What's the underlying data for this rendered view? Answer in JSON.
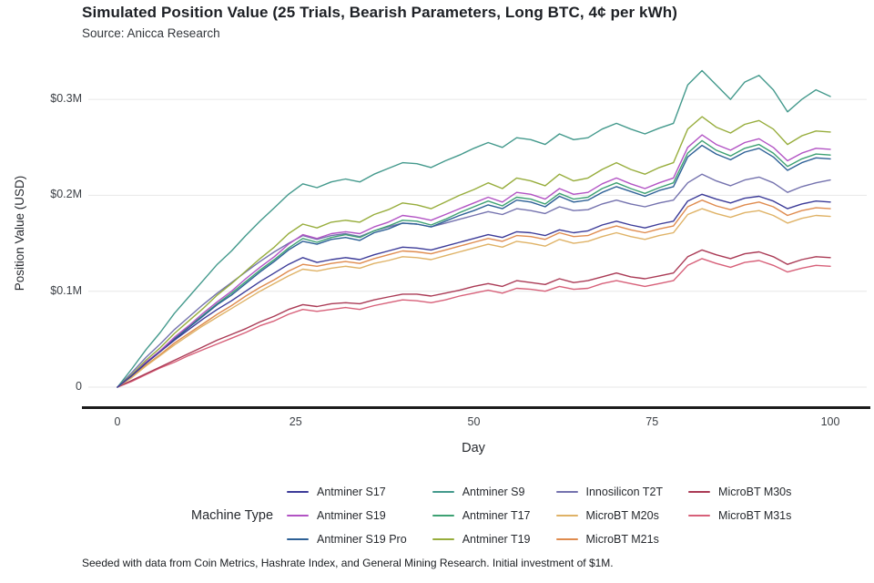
{
  "title": "Simulated Position Value (25 Trials, Bearish Parameters, Long BTC, 4¢ per kWh)",
  "subtitle": "Source: Anicca Research",
  "footnote": "Seeded with data from Coin Metrics, Hashrate Index, and General Mining Research. Initial investment of $1M.",
  "axes": {
    "y_label": "Position Value (USD)",
    "x_label": "Day",
    "y_ticks": [
      "$0.3M",
      "$0.2M",
      "$0.1M",
      "0"
    ],
    "x_ticks": [
      "0",
      "25",
      "50",
      "75",
      "100"
    ]
  },
  "legend": {
    "title": "Machine Type"
  },
  "colors": {
    "grid": "#e7e7e7",
    "axis": "#1b1b1b"
  },
  "chart_data": {
    "type": "line",
    "title": "Simulated Position Value (25 Trials, Bearish Parameters, Long BTC, 4¢ per kWh)",
    "xlabel": "Day",
    "ylabel": "Position Value (USD)",
    "x_range": [
      0,
      100
    ],
    "y_range_usd_m": [
      0,
      0.35
    ],
    "grid": true,
    "legend_position": "bottom",
    "x_step": 2,
    "x_tick_values": [
      0,
      25,
      50,
      75,
      100
    ],
    "y_tick_values_usd_m": [
      0.3,
      0.2,
      0.1,
      0
    ],
    "units": "million USD",
    "series": [
      {
        "name": "Antminer S17",
        "color": "#3c3b98",
        "values_usd_m": [
          0,
          0.012,
          0.025,
          0.037,
          0.049,
          0.06,
          0.071,
          0.081,
          0.09,
          0.1,
          0.11,
          0.119,
          0.128,
          0.135,
          0.13,
          0.133,
          0.135,
          0.133,
          0.138,
          0.142,
          0.146,
          0.145,
          0.143,
          0.147,
          0.151,
          0.155,
          0.159,
          0.156,
          0.162,
          0.161,
          0.158,
          0.164,
          0.161,
          0.163,
          0.169,
          0.173,
          0.169,
          0.166,
          0.17,
          0.173,
          0.194,
          0.201,
          0.196,
          0.192,
          0.197,
          0.199,
          0.194,
          0.186,
          0.191,
          0.194,
          0.193
        ]
      },
      {
        "name": "Antminer S19",
        "color": "#b253c4",
        "values_usd_m": [
          0,
          0.012,
          0.026,
          0.038,
          0.052,
          0.064,
          0.077,
          0.089,
          0.1,
          0.113,
          0.125,
          0.136,
          0.149,
          0.159,
          0.155,
          0.16,
          0.162,
          0.16,
          0.167,
          0.172,
          0.179,
          0.177,
          0.174,
          0.18,
          0.186,
          0.192,
          0.198,
          0.193,
          0.203,
          0.201,
          0.196,
          0.207,
          0.201,
          0.203,
          0.212,
          0.218,
          0.212,
          0.207,
          0.213,
          0.218,
          0.25,
          0.263,
          0.253,
          0.247,
          0.255,
          0.259,
          0.25,
          0.236,
          0.244,
          0.249,
          0.248
        ]
      },
      {
        "name": "Antminer S19 Pro",
        "color": "#2d6096",
        "values_usd_m": [
          0,
          0.012,
          0.025,
          0.037,
          0.05,
          0.062,
          0.074,
          0.086,
          0.096,
          0.108,
          0.12,
          0.131,
          0.143,
          0.152,
          0.149,
          0.154,
          0.156,
          0.153,
          0.161,
          0.165,
          0.171,
          0.17,
          0.167,
          0.173,
          0.179,
          0.184,
          0.19,
          0.186,
          0.195,
          0.193,
          0.188,
          0.199,
          0.193,
          0.195,
          0.203,
          0.209,
          0.204,
          0.199,
          0.205,
          0.209,
          0.24,
          0.252,
          0.243,
          0.237,
          0.245,
          0.249,
          0.24,
          0.226,
          0.234,
          0.239,
          0.238
        ]
      },
      {
        "name": "Antminer S9",
        "color": "#43998c",
        "values_usd_m": [
          0,
          0.019,
          0.039,
          0.057,
          0.077,
          0.094,
          0.111,
          0.128,
          0.142,
          0.158,
          0.173,
          0.187,
          0.201,
          0.212,
          0.208,
          0.214,
          0.217,
          0.214,
          0.222,
          0.228,
          0.234,
          0.233,
          0.229,
          0.236,
          0.242,
          0.249,
          0.255,
          0.25,
          0.26,
          0.258,
          0.253,
          0.264,
          0.258,
          0.26,
          0.269,
          0.275,
          0.269,
          0.264,
          0.27,
          0.275,
          0.315,
          0.33,
          0.315,
          0.3,
          0.318,
          0.325,
          0.31,
          0.287,
          0.3,
          0.31,
          0.303
        ]
      },
      {
        "name": "Antminer T17",
        "color": "#3da173",
        "values_usd_m": [
          0,
          0.012,
          0.025,
          0.038,
          0.051,
          0.063,
          0.075,
          0.087,
          0.098,
          0.11,
          0.122,
          0.133,
          0.145,
          0.155,
          0.151,
          0.156,
          0.159,
          0.156,
          0.163,
          0.168,
          0.174,
          0.173,
          0.169,
          0.175,
          0.182,
          0.188,
          0.194,
          0.189,
          0.198,
          0.196,
          0.191,
          0.202,
          0.196,
          0.198,
          0.207,
          0.213,
          0.207,
          0.202,
          0.208,
          0.213,
          0.244,
          0.257,
          0.247,
          0.241,
          0.249,
          0.253,
          0.244,
          0.23,
          0.238,
          0.243,
          0.242
        ]
      },
      {
        "name": "Antminer T19",
        "color": "#97ad3c",
        "values_usd_m": [
          0,
          0.013,
          0.028,
          0.041,
          0.056,
          0.069,
          0.082,
          0.096,
          0.108,
          0.121,
          0.134,
          0.146,
          0.16,
          0.17,
          0.166,
          0.172,
          0.174,
          0.172,
          0.18,
          0.185,
          0.192,
          0.19,
          0.186,
          0.193,
          0.2,
          0.206,
          0.213,
          0.207,
          0.218,
          0.215,
          0.21,
          0.222,
          0.215,
          0.218,
          0.227,
          0.234,
          0.227,
          0.222,
          0.229,
          0.234,
          0.269,
          0.282,
          0.271,
          0.265,
          0.274,
          0.278,
          0.269,
          0.253,
          0.262,
          0.267,
          0.266
        ]
      },
      {
        "name": "Innosilicon T2T",
        "color": "#7472ae",
        "values_usd_m": [
          0,
          0.015,
          0.031,
          0.045,
          0.06,
          0.073,
          0.086,
          0.098,
          0.109,
          0.12,
          0.131,
          0.141,
          0.15,
          0.158,
          0.154,
          0.158,
          0.16,
          0.157,
          0.163,
          0.167,
          0.171,
          0.17,
          0.167,
          0.171,
          0.175,
          0.179,
          0.183,
          0.18,
          0.186,
          0.184,
          0.181,
          0.188,
          0.184,
          0.185,
          0.191,
          0.195,
          0.191,
          0.188,
          0.192,
          0.195,
          0.213,
          0.222,
          0.215,
          0.21,
          0.216,
          0.219,
          0.213,
          0.203,
          0.209,
          0.213,
          0.216
        ]
      },
      {
        "name": "MicroBT M20s",
        "color": "#dfb266",
        "values_usd_m": [
          0,
          0.01,
          0.022,
          0.033,
          0.044,
          0.054,
          0.064,
          0.073,
          0.082,
          0.091,
          0.1,
          0.108,
          0.116,
          0.123,
          0.121,
          0.124,
          0.126,
          0.124,
          0.129,
          0.132,
          0.136,
          0.135,
          0.133,
          0.137,
          0.141,
          0.145,
          0.149,
          0.146,
          0.152,
          0.15,
          0.147,
          0.154,
          0.15,
          0.152,
          0.157,
          0.161,
          0.157,
          0.154,
          0.158,
          0.161,
          0.18,
          0.186,
          0.181,
          0.177,
          0.182,
          0.184,
          0.179,
          0.171,
          0.176,
          0.179,
          0.178
        ]
      },
      {
        "name": "MicroBT M21s",
        "color": "#df8b4e",
        "values_usd_m": [
          0,
          0.011,
          0.023,
          0.034,
          0.046,
          0.056,
          0.066,
          0.076,
          0.085,
          0.095,
          0.104,
          0.112,
          0.121,
          0.128,
          0.126,
          0.129,
          0.131,
          0.129,
          0.134,
          0.138,
          0.142,
          0.141,
          0.139,
          0.143,
          0.147,
          0.151,
          0.155,
          0.152,
          0.158,
          0.157,
          0.154,
          0.161,
          0.157,
          0.158,
          0.164,
          0.168,
          0.164,
          0.161,
          0.165,
          0.168,
          0.188,
          0.195,
          0.189,
          0.185,
          0.19,
          0.193,
          0.188,
          0.179,
          0.184,
          0.187,
          0.186
        ]
      },
      {
        "name": "MicroBT M30s",
        "color": "#aa3a55",
        "values_usd_m": [
          0,
          0.007,
          0.014,
          0.021,
          0.028,
          0.035,
          0.042,
          0.049,
          0.055,
          0.061,
          0.068,
          0.074,
          0.081,
          0.086,
          0.084,
          0.087,
          0.088,
          0.087,
          0.091,
          0.094,
          0.097,
          0.097,
          0.095,
          0.098,
          0.101,
          0.105,
          0.108,
          0.105,
          0.111,
          0.109,
          0.107,
          0.113,
          0.109,
          0.111,
          0.115,
          0.119,
          0.115,
          0.113,
          0.116,
          0.119,
          0.136,
          0.143,
          0.138,
          0.134,
          0.139,
          0.141,
          0.136,
          0.128,
          0.133,
          0.136,
          0.135
        ]
      },
      {
        "name": "MicroBT M31s",
        "color": "#d76079",
        "values_usd_m": [
          0,
          0.006,
          0.013,
          0.02,
          0.026,
          0.033,
          0.039,
          0.045,
          0.051,
          0.057,
          0.064,
          0.069,
          0.076,
          0.081,
          0.079,
          0.081,
          0.083,
          0.081,
          0.085,
          0.088,
          0.091,
          0.09,
          0.088,
          0.091,
          0.095,
          0.098,
          0.101,
          0.098,
          0.103,
          0.102,
          0.1,
          0.105,
          0.102,
          0.103,
          0.108,
          0.111,
          0.108,
          0.105,
          0.108,
          0.111,
          0.127,
          0.134,
          0.129,
          0.125,
          0.13,
          0.132,
          0.127,
          0.12,
          0.124,
          0.127,
          0.126
        ]
      }
    ]
  }
}
